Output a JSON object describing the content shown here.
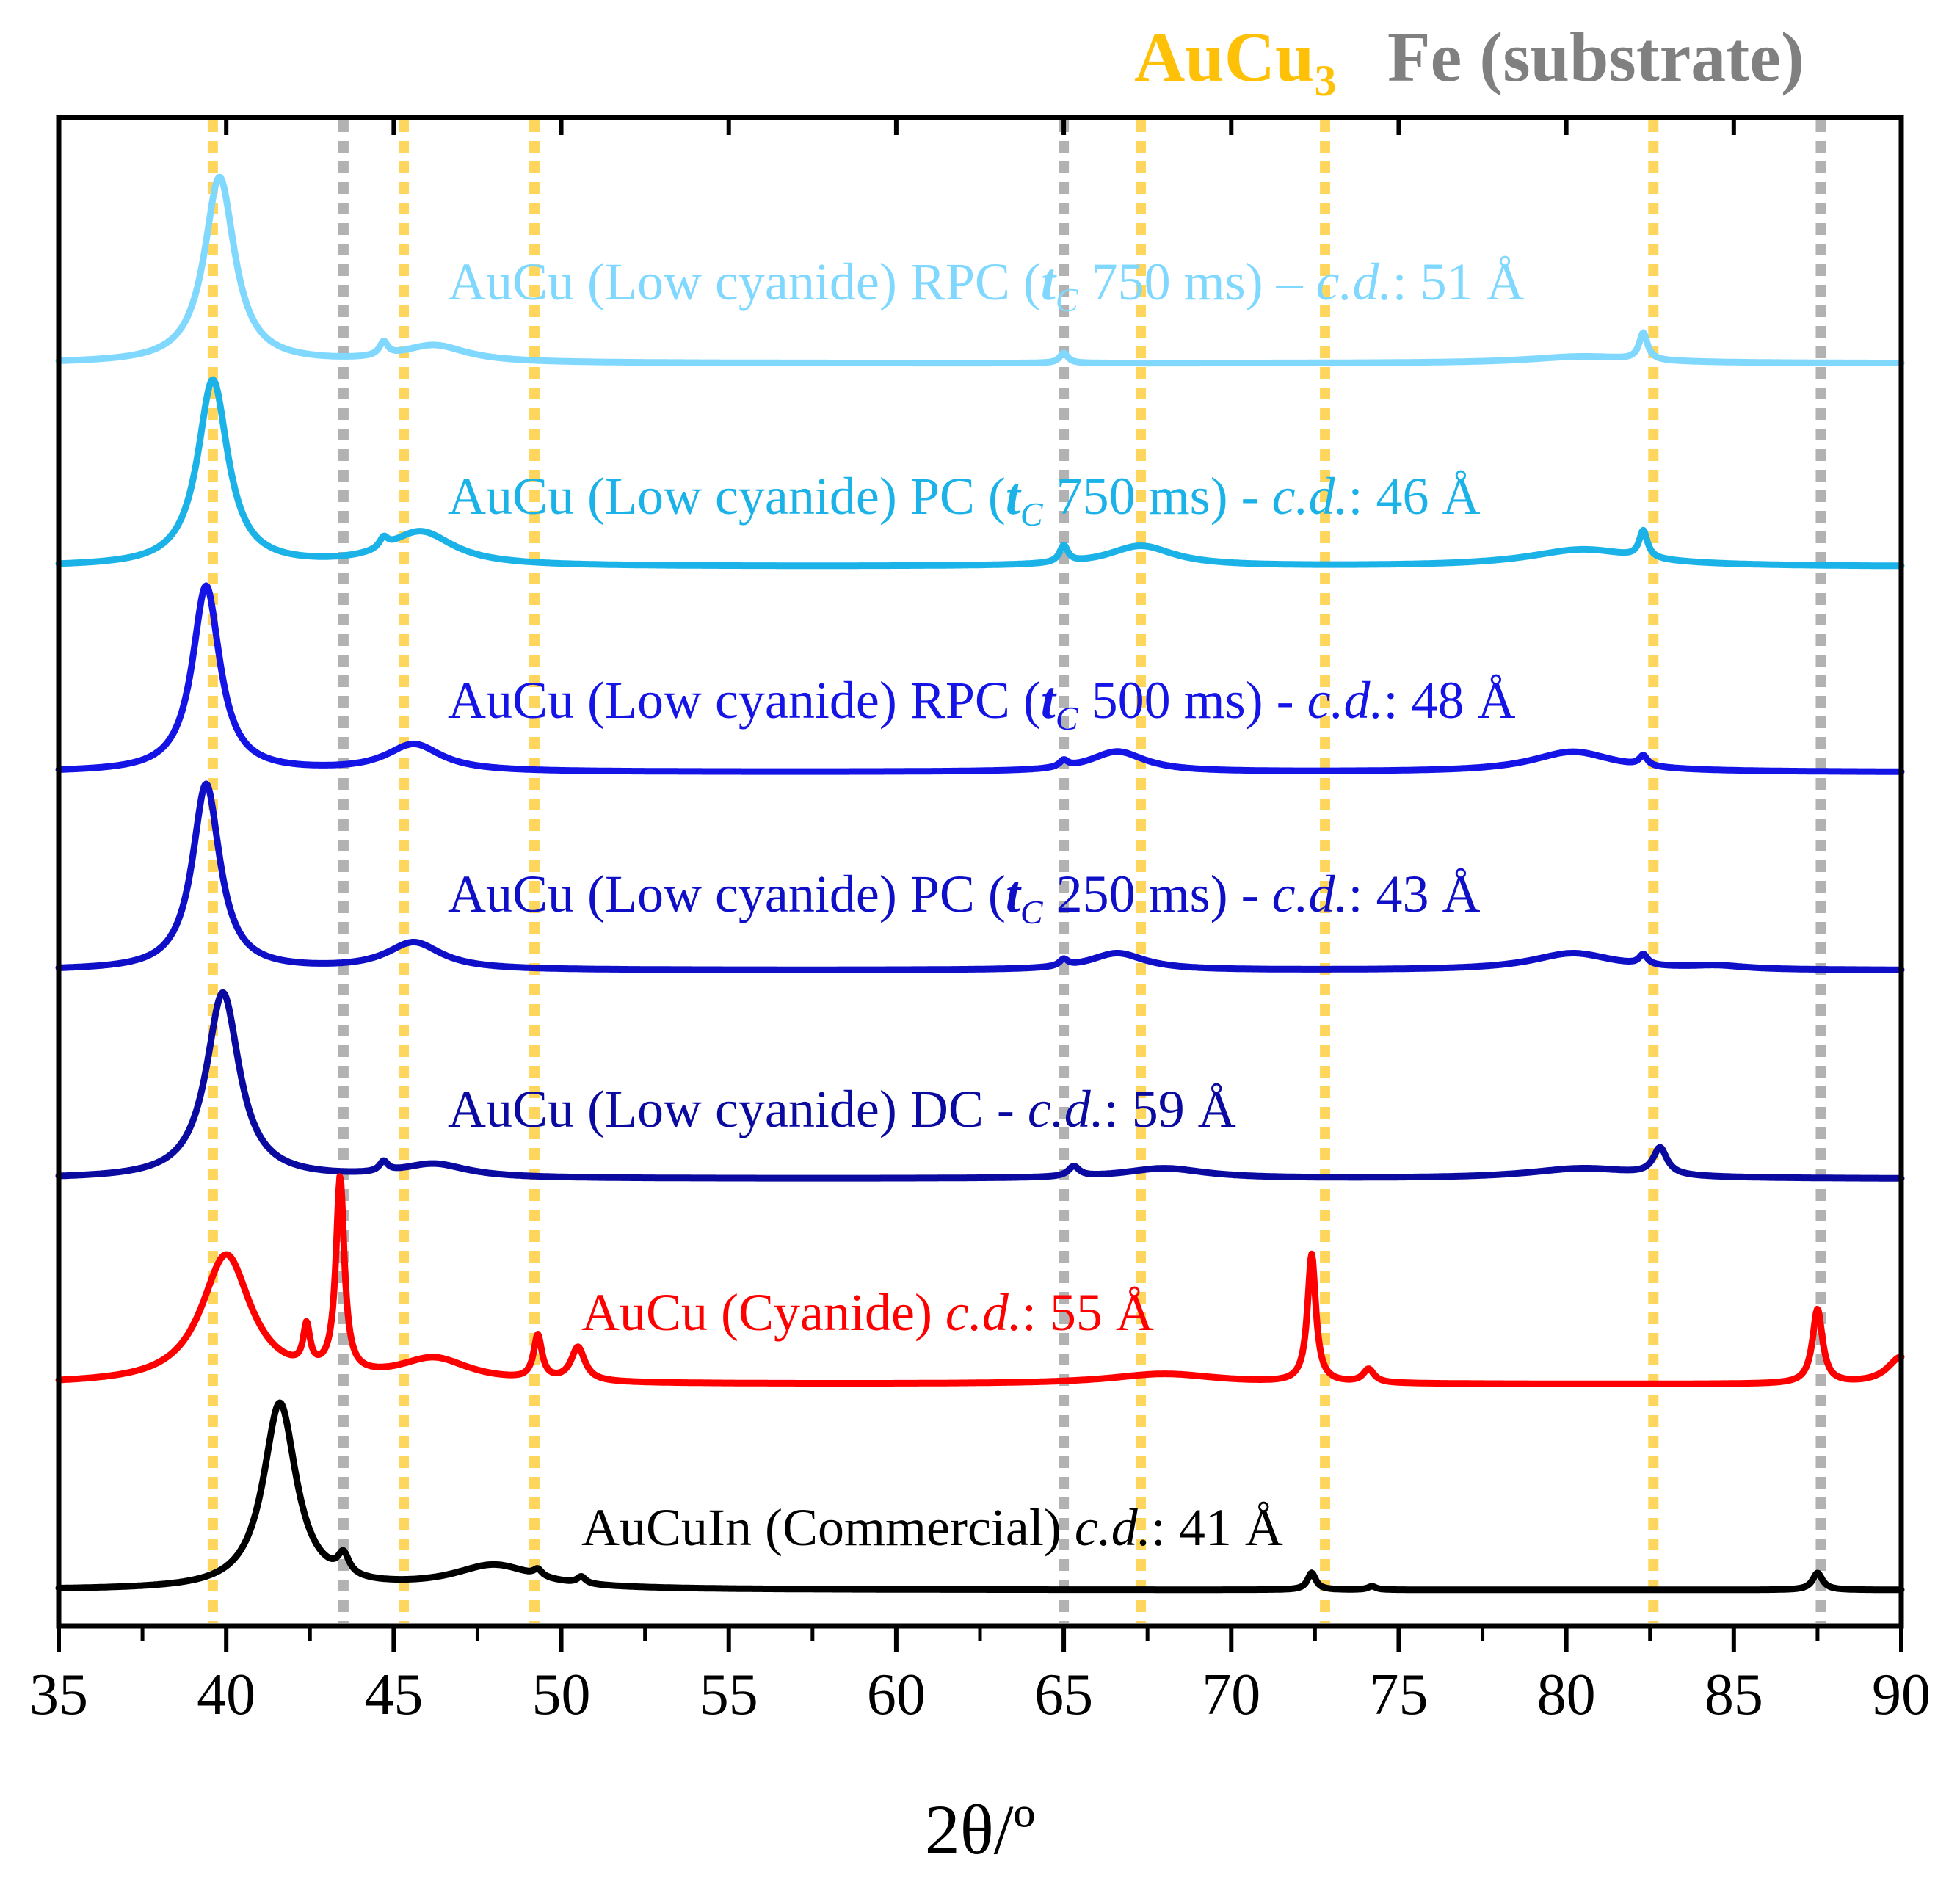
{
  "chart_data": {
    "type": "line",
    "title": "",
    "xlabel": "2θ/º",
    "ylabel": "",
    "xlim": [
      35,
      90
    ],
    "x_ticks": [
      35,
      40,
      45,
      50,
      55,
      60,
      65,
      70,
      75,
      80,
      85,
      90
    ],
    "x_tick_labels": [
      "35",
      "40",
      "45",
      "50",
      "55",
      "60",
      "65",
      "70",
      "75",
      "80",
      "85",
      "90"
    ],
    "grid": false,
    "legend": [
      {
        "name": "AuCu",
        "subscript": "3",
        "color": "#FFC107"
      },
      {
        "name": "Fe (substrate)",
        "color": "#808080"
      }
    ],
    "reference_lines": {
      "AuCu3": {
        "color": "#FFC107",
        "x": [
          39.6,
          45.3,
          49.2,
          67.3,
          72.8,
          82.6
        ]
      },
      "Fe": {
        "color": "#999999",
        "x": [
          43.5,
          65.0,
          87.6
        ]
      }
    },
    "series": [
      {
        "name": "AuCu (Low cyanide) RPC (tC 750 ms) – c.d.: 51 Å",
        "label_parts": {
          "prefix": "AuCu (Low cyanide) RPC (",
          "t": "t",
          "sub": "C",
          "mid": " 750 ms) – ",
          "cd": "c.d.",
          "suffix": ": 51 Å"
        },
        "color": "#80D8FF",
        "peaks": [
          {
            "x": 39.8,
            "h": 0.55,
            "w": 0.55
          },
          {
            "x": 44.7,
            "h": 0.04,
            "w": 0.15
          },
          {
            "x": 46.2,
            "h": 0.05,
            "w": 1.2
          },
          {
            "x": 65.0,
            "h": 0.03,
            "w": 0.15
          },
          {
            "x": 82.3,
            "h": 0.08,
            "w": 0.15
          },
          {
            "x": 80.5,
            "h": 0.02,
            "w": 2.0
          }
        ]
      },
      {
        "name": "AuCu (Low cyanide) PC (tC 750 ms) - c.d.: 46 Å",
        "label_parts": {
          "prefix": "AuCu (Low cyanide) PC (",
          "t": "t",
          "sub": "C",
          "mid": " 750 ms) - ",
          "cd": "c.d.",
          "suffix": ": 46 Å"
        },
        "color": "#1BB2E8",
        "peaks": [
          {
            "x": 39.6,
            "h": 0.55,
            "w": 0.55
          },
          {
            "x": 44.7,
            "h": 0.03,
            "w": 0.15
          },
          {
            "x": 45.8,
            "h": 0.1,
            "w": 1.2
          },
          {
            "x": 65.0,
            "h": 0.05,
            "w": 0.15
          },
          {
            "x": 67.3,
            "h": 0.06,
            "w": 1.2
          },
          {
            "x": 80.5,
            "h": 0.05,
            "w": 2.0
          },
          {
            "x": 82.3,
            "h": 0.08,
            "w": 0.15
          }
        ]
      },
      {
        "name": "AuCu (Low cyanide) RPC (tC 500 ms) - c.d.: 48 Å",
        "label_parts": {
          "prefix": "AuCu (Low cyanide) RPC (",
          "t": "t",
          "sub": "C",
          "mid": " 500 ms) -  ",
          "cd": "c.d.",
          "suffix": ": 48 Å"
        },
        "color": "#1414E6",
        "peaks": [
          {
            "x": 39.4,
            "h": 0.55,
            "w": 0.5
          },
          {
            "x": 45.6,
            "h": 0.08,
            "w": 1.0
          },
          {
            "x": 65.0,
            "h": 0.02,
            "w": 0.15
          },
          {
            "x": 66.6,
            "h": 0.06,
            "w": 1.0
          },
          {
            "x": 80.2,
            "h": 0.06,
            "w": 1.5
          },
          {
            "x": 82.3,
            "h": 0.03,
            "w": 0.15
          }
        ]
      },
      {
        "name": "AuCu (Low cyanide) PC (tC 250 ms) - c.d.: 43 Å",
        "label_parts": {
          "prefix": "AuCu (Low cyanide) PC (",
          "t": "t",
          "sub": "C",
          "mid": " 250 ms) - ",
          "cd": "c.d.",
          "suffix": ": 43 Å"
        },
        "color": "#0F0FC8",
        "peaks": [
          {
            "x": 39.4,
            "h": 0.55,
            "w": 0.5
          },
          {
            "x": 45.6,
            "h": 0.08,
            "w": 1.0
          },
          {
            "x": 65.0,
            "h": 0.02,
            "w": 0.15
          },
          {
            "x": 66.6,
            "h": 0.05,
            "w": 1.0
          },
          {
            "x": 80.2,
            "h": 0.05,
            "w": 1.5
          },
          {
            "x": 82.3,
            "h": 0.03,
            "w": 0.15
          },
          {
            "x": 84.5,
            "h": 0.01,
            "w": 1.0
          }
        ]
      },
      {
        "name": "AuCu (Low cyanide) DC - c.d.: 59 Å",
        "label_parts": {
          "prefix": "AuCu (Low cyanide) DC - ",
          "t": "",
          "sub": "",
          "mid": "",
          "cd": "c.d.",
          "suffix": ": 59 Å"
        },
        "color": "#0A0AA0",
        "peaks": [
          {
            "x": 39.9,
            "h": 0.55,
            "w": 0.6
          },
          {
            "x": 44.7,
            "h": 0.03,
            "w": 0.15
          },
          {
            "x": 46.2,
            "h": 0.04,
            "w": 1.2
          },
          {
            "x": 65.3,
            "h": 0.03,
            "w": 0.2
          },
          {
            "x": 68.0,
            "h": 0.03,
            "w": 1.5
          },
          {
            "x": 80.5,
            "h": 0.03,
            "w": 2.0
          },
          {
            "x": 82.8,
            "h": 0.08,
            "w": 0.25
          }
        ]
      },
      {
        "name": "AuCu (Cyanide) c.d.: 55 Å",
        "label_parts": {
          "prefix": "AuCu (Cyanide) ",
          "t": "",
          "sub": "",
          "mid": "",
          "cd": "c.d.",
          "suffix": ": 55 Å"
        },
        "color": "#FF0000",
        "peaks": [
          {
            "x": 40.0,
            "h": 0.38,
            "w": 0.9
          },
          {
            "x": 42.4,
            "h": 0.12,
            "w": 0.12
          },
          {
            "x": 43.4,
            "h": 0.58,
            "w": 0.15
          },
          {
            "x": 46.2,
            "h": 0.07,
            "w": 1.3
          },
          {
            "x": 49.3,
            "h": 0.13,
            "w": 0.15
          },
          {
            "x": 50.5,
            "h": 0.1,
            "w": 0.25
          },
          {
            "x": 68.0,
            "h": 0.03,
            "w": 2.0
          },
          {
            "x": 72.4,
            "h": 0.38,
            "w": 0.15
          },
          {
            "x": 74.1,
            "h": 0.04,
            "w": 0.2
          },
          {
            "x": 87.5,
            "h": 0.22,
            "w": 0.18
          },
          {
            "x": 90.0,
            "h": 0.08,
            "w": 0.5
          }
        ]
      },
      {
        "name": "AuCuIn (Commercial) c.d.: 41 Å",
        "label_parts": {
          "prefix": "AuCuIn (Commercial) ",
          "t": "",
          "sub": "",
          "mid": "",
          "cd": "c.d.",
          "suffix": ": 41 Å"
        },
        "color": "#000000",
        "peaks": [
          {
            "x": 41.6,
            "h": 0.55,
            "w": 0.6
          },
          {
            "x": 43.5,
            "h": 0.06,
            "w": 0.2
          },
          {
            "x": 48.0,
            "h": 0.07,
            "w": 1.5
          },
          {
            "x": 49.3,
            "h": 0.02,
            "w": 0.15
          },
          {
            "x": 50.6,
            "h": 0.02,
            "w": 0.15
          },
          {
            "x": 72.4,
            "h": 0.05,
            "w": 0.15
          },
          {
            "x": 74.2,
            "h": 0.01,
            "w": 0.15
          },
          {
            "x": 87.5,
            "h": 0.05,
            "w": 0.18
          }
        ]
      }
    ]
  }
}
